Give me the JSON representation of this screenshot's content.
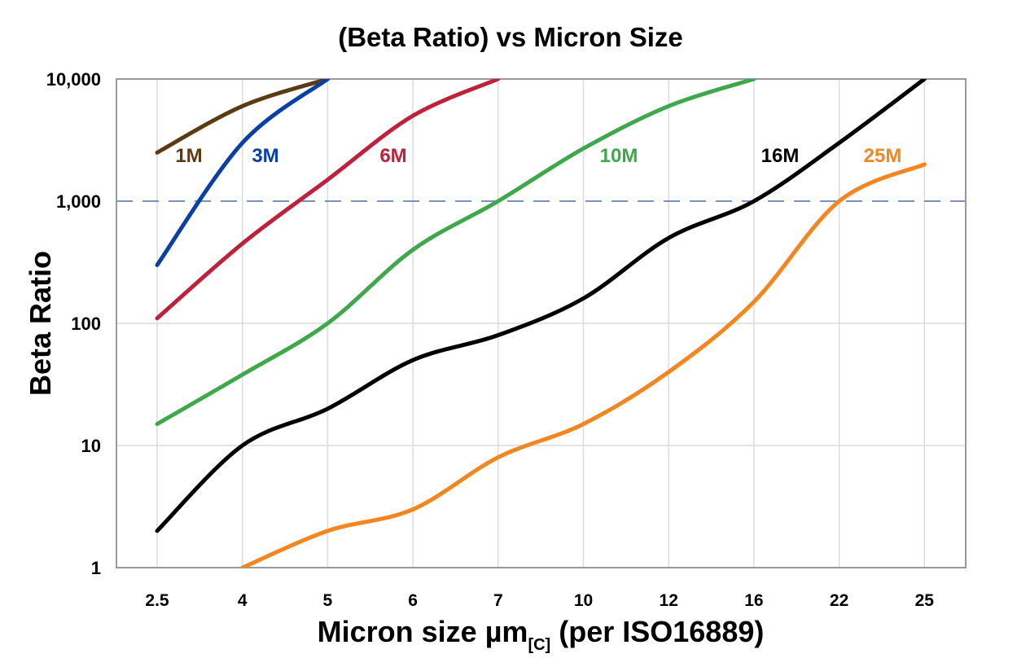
{
  "chart_data": {
    "type": "line",
    "title": "(Beta Ratio) vs Micron Size",
    "xlabel": {
      "main": "Micron size µm",
      "subscript": "[C]",
      "suffix": " (per ISO16889)"
    },
    "ylabel": "Beta Ratio",
    "y_scale": "log",
    "ylim": [
      1,
      10000
    ],
    "yticks": [
      1,
      10,
      100,
      1000,
      10000
    ],
    "ytick_labels": [
      "1",
      "10",
      "100",
      "1,000",
      "10,000"
    ],
    "categories": [
      "2.5",
      "4",
      "5",
      "6",
      "7",
      "10",
      "12",
      "16",
      "22",
      "25"
    ],
    "grid": true,
    "reference_line": {
      "y": 1000,
      "style": "dashed",
      "color": "#4a6fa5"
    },
    "series": [
      {
        "name": "1M",
        "color": "#5c3a12",
        "values": [
          2500,
          6000,
          10000,
          null,
          null,
          null,
          null,
          null,
          null,
          null
        ]
      },
      {
        "name": "3M",
        "color": "#0a3fa8",
        "values": [
          300,
          3000,
          10000,
          null,
          null,
          null,
          null,
          null,
          null,
          null
        ]
      },
      {
        "name": "6M",
        "color": "#c0203a",
        "values": [
          110,
          450,
          1500,
          5000,
          10000,
          null,
          null,
          null,
          null,
          null
        ]
      },
      {
        "name": "10M",
        "color": "#3ea84a",
        "values": [
          15,
          38,
          100,
          400,
          1000,
          2700,
          6000,
          10000,
          null,
          null
        ]
      },
      {
        "name": "16M",
        "color": "#000000",
        "values": [
          2,
          10,
          20,
          50,
          80,
          160,
          500,
          1000,
          3000,
          10000
        ]
      },
      {
        "name": "25M",
        "color": "#f4861f",
        "values": [
          null,
          1,
          2,
          3,
          8,
          15,
          40,
          150,
          1000,
          2000
        ]
      }
    ]
  }
}
